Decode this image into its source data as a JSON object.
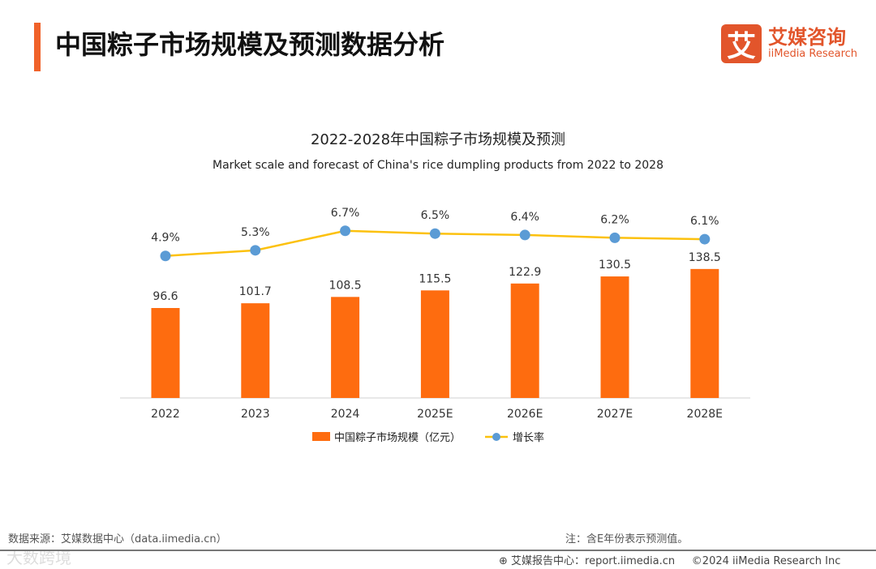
{
  "header": {
    "title": "中国粽子市场规模及预测数据分析"
  },
  "logo": {
    "mark": "艾",
    "cn": "艾媒咨询",
    "en": "iiMedia Research"
  },
  "chart_data": {
    "type": "bar",
    "title": "2022-2028年中国粽子市场规模及预测",
    "subtitle": "Market scale and forecast of China's rice dumpling products from 2022 to 2028",
    "categories": [
      "2022",
      "2023",
      "2024",
      "2025E",
      "2026E",
      "2027E",
      "2028E"
    ],
    "series": [
      {
        "name": "中国粽子市场规模（亿元）",
        "type": "bar",
        "color": "#fe6c0f",
        "values": [
          96.6,
          101.7,
          108.5,
          115.5,
          122.9,
          130.5,
          138.5
        ],
        "labels": [
          "96.6",
          "101.7",
          "108.5",
          "115.5",
          "122.9",
          "130.5",
          "138.5"
        ]
      },
      {
        "name": "增长率",
        "type": "line",
        "color": "#fcc10e",
        "marker_color": "#5b9bd5",
        "values": [
          4.9,
          5.3,
          6.7,
          6.5,
          6.4,
          6.2,
          6.1
        ],
        "labels": [
          "4.9%",
          "5.3%",
          "6.7%",
          "6.5%",
          "6.4%",
          "6.2%",
          "6.1%"
        ]
      }
    ],
    "legend": "bottom"
  },
  "footer": {
    "source": "数据来源：艾媒数据中心（data.iimedia.cn）",
    "note": "注：含E年份表示预测值。",
    "report": "艾媒报告中心：report.iimedia.cn",
    "copyright": "©2024  iiMedia Research  Inc",
    "watermark": "大数跨境"
  }
}
